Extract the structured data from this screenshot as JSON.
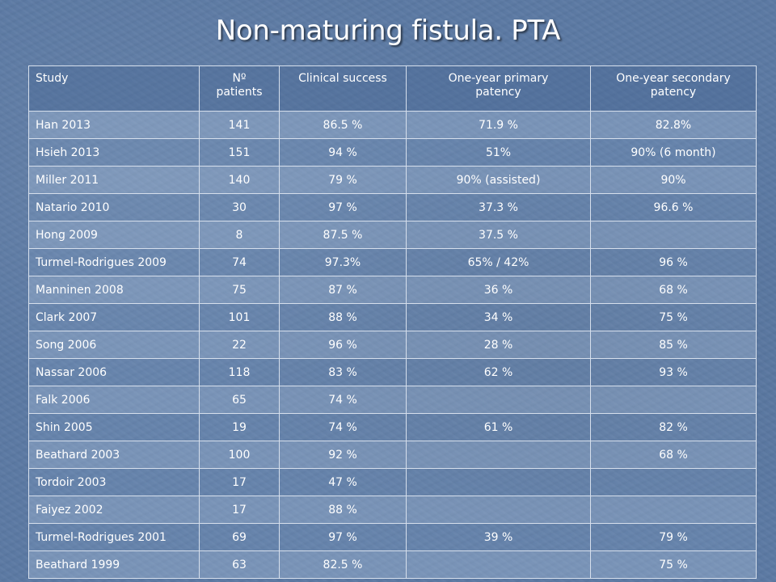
{
  "title": "Non-maturing fistula. PTA",
  "table": {
    "headers": {
      "study": "Study",
      "patients_line1": "Nº",
      "patients_line2": "patients",
      "clinical_success": "Clinical success",
      "primary_line1": "One-year primary",
      "primary_line2": "patency",
      "secondary_line1": "One-year secondary",
      "secondary_line2": "patency"
    },
    "rows": [
      {
        "study": "Han 2013",
        "patients": "141",
        "clinical": "86.5 %",
        "primary": "71.9 %",
        "secondary": "82.8%"
      },
      {
        "study": "Hsieh 2013",
        "patients": "151",
        "clinical": "94 %",
        "primary": "51%",
        "secondary": "90% (6 month)"
      },
      {
        "study": "Miller 2011",
        "patients": "140",
        "clinical": "79 %",
        "primary": "90% (assisted)",
        "secondary": "90%"
      },
      {
        "study": "Natario 2010",
        "patients": "30",
        "clinical": "97 %",
        "primary": "37.3 %",
        "secondary": "96.6 %"
      },
      {
        "study": "Hong 2009",
        "patients": "8",
        "clinical": "87.5 %",
        "primary": "37.5 %",
        "secondary": ""
      },
      {
        "study": "Turmel-Rodrigues 2009",
        "patients": "74",
        "clinical": "97.3%",
        "primary": "65% / 42%",
        "secondary": "96 %"
      },
      {
        "study": "Manninen 2008",
        "patients": "75",
        "clinical": "87 %",
        "primary": "36 %",
        "secondary": "68 %"
      },
      {
        "study": "Clark 2007",
        "patients": "101",
        "clinical": "88 %",
        "primary": "34 %",
        "secondary": "75 %"
      },
      {
        "study": "Song 2006",
        "patients": "22",
        "clinical": "96 %",
        "primary": "28 %",
        "secondary": "85 %"
      },
      {
        "study": "Nassar 2006",
        "patients": "118",
        "clinical": "83 %",
        "primary": "62 %",
        "secondary": "93 %"
      },
      {
        "study": "Falk 2006",
        "patients": "65",
        "clinical": "74 %",
        "primary": "",
        "secondary": ""
      },
      {
        "study": "Shin 2005",
        "patients": "19",
        "clinical": "74 %",
        "primary": "61 %",
        "secondary": "82 %"
      },
      {
        "study": "Beathard 2003",
        "patients": "100",
        "clinical": "92 %",
        "primary": "",
        "secondary": "68 %"
      },
      {
        "study": "Tordoir 2003",
        "patients": "17",
        "clinical": "47 %",
        "primary": "",
        "secondary": ""
      },
      {
        "study": "Faiyez 2002",
        "patients": "17",
        "clinical": "88 %",
        "primary": "",
        "secondary": ""
      },
      {
        "study": "Turmel-Rodrigues 2001",
        "patients": "69",
        "clinical": "97 %",
        "primary": "39 %",
        "secondary": "79 %"
      },
      {
        "study": "Beathard 1999",
        "patients": "63",
        "clinical": "82.5 %",
        "primary": "",
        "secondary": "75 %"
      }
    ]
  }
}
